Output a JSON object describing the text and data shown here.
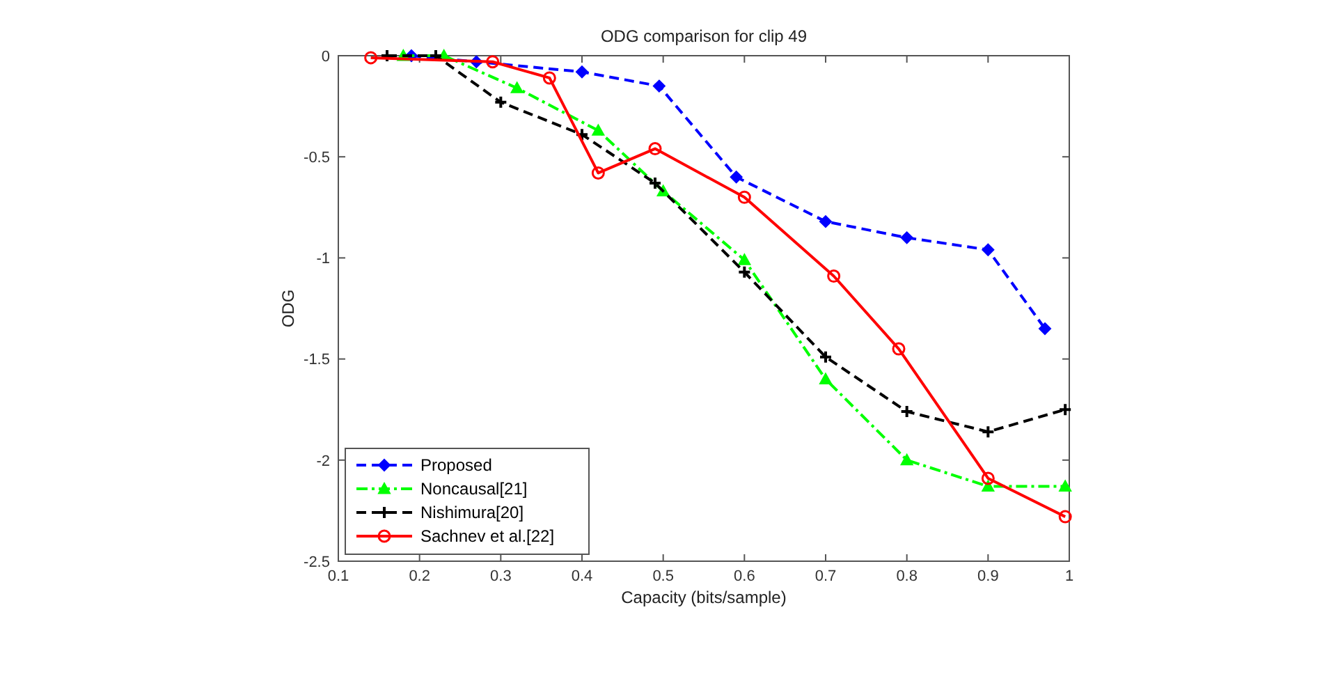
{
  "chart_data": {
    "type": "line",
    "title": "ODG comparison for clip 49",
    "xlabel": "Capacity (bits/sample)",
    "ylabel": "ODG",
    "xlim": [
      0.1,
      1
    ],
    "xticks": [
      0.1,
      0.2,
      0.3,
      0.4,
      0.5,
      0.6,
      0.7,
      0.8,
      0.9,
      1
    ],
    "ylim": [
      -2.5,
      0
    ],
    "yticks": [
      -2.5,
      -2,
      -1.5,
      -1,
      -0.5,
      0
    ],
    "grid": false,
    "legend": "bottom left",
    "series": [
      {
        "name": "Proposed",
        "color": "#0000ff",
        "marker": "diamond",
        "line_style": "dashed",
        "x": [
          0.19,
          0.27,
          0.4,
          0.495,
          0.59,
          0.7,
          0.8,
          0.9,
          0.97
        ],
        "values": [
          0,
          -0.03,
          -0.08,
          -0.15,
          -0.6,
          -0.82,
          -0.9,
          -0.96,
          -1.35
        ]
      },
      {
        "name": "Noncausal[21]",
        "color": "#00ff00",
        "marker": "triangle",
        "line_style": "dashdot",
        "x": [
          0.18,
          0.23,
          0.32,
          0.42,
          0.5,
          0.6,
          0.7,
          0.8,
          0.9,
          0.995
        ],
        "values": [
          0,
          0,
          -0.16,
          -0.37,
          -0.67,
          -1.01,
          -1.6,
          -2,
          -2.13,
          -2.13
        ]
      },
      {
        "name": "Nishimura[20]",
        "color": "#000000",
        "marker": "cross",
        "line_style": "dashed",
        "x": [
          0.16,
          0.22,
          0.3,
          0.4,
          0.49,
          0.6,
          0.7,
          0.8,
          0.9,
          0.995
        ],
        "values": [
          0,
          0,
          -0.23,
          -0.39,
          -0.63,
          -1.07,
          -1.49,
          -1.76,
          -1.86,
          -1.75
        ]
      },
      {
        "name": "Sachnev et al.[22]",
        "color": "#ff0000",
        "marker": "circle",
        "line_style": "solid",
        "x": [
          0.14,
          0.29,
          0.36,
          0.42,
          0.49,
          0.6,
          0.71,
          0.79,
          0.9,
          0.995
        ],
        "values": [
          -0.01,
          -0.03,
          -0.11,
          -0.58,
          -0.46,
          -0.7,
          -1.09,
          -1.45,
          -2.09,
          -2.28
        ]
      }
    ]
  }
}
